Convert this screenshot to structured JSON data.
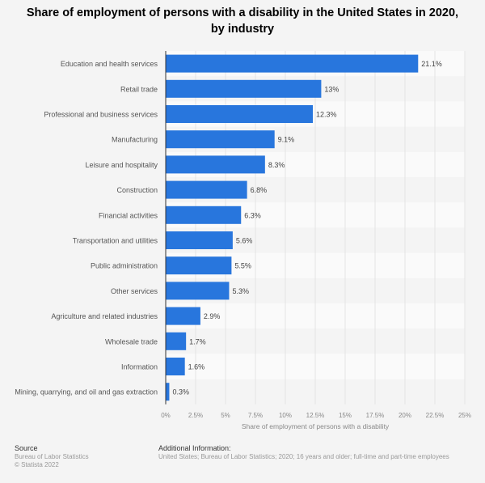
{
  "chart_data": {
    "type": "bar",
    "orientation": "horizontal",
    "title": "Share of employment of persons with a disability in the United States in 2020, by industry",
    "categories": [
      "Education and health services",
      "Retail trade",
      "Professional and business services",
      "Manufacturing",
      "Leisure and hospitality",
      "Construction",
      "Financial activities",
      "Transportation and utilities",
      "Public administration",
      "Other services",
      "Agriculture and related industries",
      "Wholesale trade",
      "Information",
      "Mining, quarrying, and oil and gas extraction"
    ],
    "values": [
      21.1,
      13,
      12.3,
      9.1,
      8.3,
      6.8,
      6.3,
      5.6,
      5.5,
      5.3,
      2.9,
      1.7,
      1.6,
      0.3
    ],
    "data_labels": [
      "21.1%",
      "13%",
      "12.3%",
      "9.1%",
      "8.3%",
      "6.8%",
      "6.3%",
      "5.6%",
      "5.5%",
      "5.3%",
      "2.9%",
      "1.7%",
      "1.6%",
      "0.3%"
    ],
    "xlabel": "Share of employment of persons with a disability",
    "xlim": [
      0,
      25
    ],
    "ticks": [
      "0%",
      "2.5%",
      "5%",
      "7.5%",
      "10%",
      "12.5%",
      "15%",
      "17.5%",
      "20%",
      "22.5%",
      "25%"
    ],
    "grid": true,
    "bar_color": "#2876dd"
  },
  "footer": {
    "source_heading": "Source",
    "source": "Bureau of Labor Statistics",
    "copyright": "© Statista 2022",
    "info_heading": "Additional Information:",
    "info": "United States; Bureau of Labor Statistics; 2020; 16 years and older; full-time and part-time employees"
  }
}
